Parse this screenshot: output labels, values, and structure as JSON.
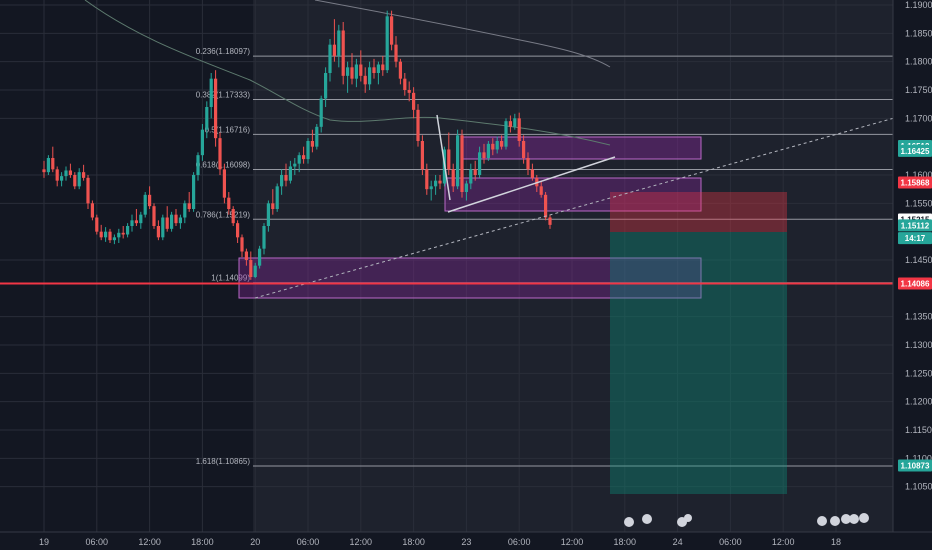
{
  "chart_data": {
    "type": "candlestick",
    "y_axis": {
      "min": 1.1,
      "max": 1.19,
      "ticks": [
        "1.19000",
        "1.18500",
        "1.18000",
        "1.17500",
        "1.17000",
        "1.16000",
        "1.15500",
        "1.14500",
        "1.13500",
        "1.13000",
        "1.12500",
        "1.12000",
        "1.11500",
        "1.11000",
        "1.10500"
      ],
      "tick_values": [
        1.19,
        1.185,
        1.18,
        1.175,
        1.17,
        1.16,
        1.155,
        1.145,
        1.135,
        1.13,
        1.125,
        1.12,
        1.115,
        1.11,
        1.105
      ]
    },
    "x_axis": {
      "ticks": [
        "19",
        "06:00",
        "12:00",
        "18:00",
        "20",
        "06:00",
        "12:00",
        "18:00",
        "23",
        "06:00",
        "12:00",
        "18:00",
        "24",
        "06:00",
        "12:00",
        "18"
      ],
      "tick_index": [
        0,
        12,
        24,
        36,
        48,
        60,
        72,
        84,
        96,
        108,
        120,
        132,
        144,
        156,
        168,
        180
      ]
    },
    "price_tags": [
      {
        "label": "1.16512",
        "price": 1.16512,
        "color": "#26a69a"
      },
      {
        "label": "1.16425",
        "price": 1.16425,
        "color": "#26a69a"
      },
      {
        "label": "1.15868",
        "price": 1.15868,
        "color": "#f23645"
      },
      {
        "label": "1.15215",
        "price": 1.15215,
        "color": "#ffffff"
      },
      {
        "label": "1.15112",
        "price": 1.15112,
        "color": "#26a69a"
      },
      {
        "label": "14:17",
        "price": 1.14885,
        "color": "#26a69a"
      },
      {
        "label": "1.14086",
        "price": 1.14086,
        "color": "#f23645"
      },
      {
        "label": "1.10873",
        "price": 1.10873,
        "color": "#26a69a"
      }
    ],
    "fib_levels": [
      {
        "label": "0.236(1.18097)",
        "price": 1.18097
      },
      {
        "label": "0.382(1.17333)",
        "price": 1.17333
      },
      {
        "label": "0.5(1.16716)",
        "price": 1.16716
      },
      {
        "label": "0.618(1.16098)",
        "price": 1.16098
      },
      {
        "label": "0.786(1.15219)",
        "price": 1.15219
      },
      {
        "label": "1(1.14099)",
        "price": 1.14099
      },
      {
        "label": "1.618(1.10865)",
        "price": 1.10865
      }
    ],
    "support_line": 1.14086,
    "candles": [
      [
        1.161,
        1.1625,
        1.1595,
        1.1605
      ],
      [
        1.1605,
        1.1635,
        1.16,
        1.163
      ],
      [
        1.163,
        1.165,
        1.1605,
        1.161
      ],
      [
        1.161,
        1.1615,
        1.158,
        1.159
      ],
      [
        1.159,
        1.1605,
        1.158,
        1.1598
      ],
      [
        1.1598,
        1.1615,
        1.159,
        1.1608
      ],
      [
        1.1608,
        1.162,
        1.1595,
        1.16
      ],
      [
        1.16,
        1.1605,
        1.1575,
        1.158
      ],
      [
        1.158,
        1.1612,
        1.1575,
        1.1605
      ],
      [
        1.1605,
        1.1618,
        1.159,
        1.1595
      ],
      [
        1.1595,
        1.16,
        1.154,
        1.155
      ],
      [
        1.155,
        1.1555,
        1.152,
        1.1525
      ],
      [
        1.1525,
        1.153,
        1.1495,
        1.15
      ],
      [
        1.15,
        1.1512,
        1.1485,
        1.149
      ],
      [
        1.149,
        1.1508,
        1.1482,
        1.15
      ],
      [
        1.15,
        1.1505,
        1.148,
        1.1485
      ],
      [
        1.1485,
        1.1495,
        1.1478,
        1.149
      ],
      [
        1.149,
        1.1505,
        1.148,
        1.1498
      ],
      [
        1.1498,
        1.151,
        1.1488,
        1.1495
      ],
      [
        1.1495,
        1.1515,
        1.149,
        1.151
      ],
      [
        1.151,
        1.153,
        1.15,
        1.152
      ],
      [
        1.152,
        1.154,
        1.151,
        1.1515
      ],
      [
        1.1515,
        1.1535,
        1.1505,
        1.153
      ],
      [
        1.153,
        1.157,
        1.1525,
        1.1565
      ],
      [
        1.1565,
        1.158,
        1.154,
        1.1545
      ],
      [
        1.1545,
        1.155,
        1.1505,
        1.151
      ],
      [
        1.151,
        1.152,
        1.1485,
        1.149
      ],
      [
        1.149,
        1.153,
        1.1485,
        1.1525
      ],
      [
        1.1525,
        1.1545,
        1.15,
        1.1505
      ],
      [
        1.1505,
        1.1535,
        1.15,
        1.153
      ],
      [
        1.153,
        1.154,
        1.151,
        1.1515
      ],
      [
        1.1515,
        1.153,
        1.1505,
        1.1525
      ],
      [
        1.1525,
        1.1555,
        1.1515,
        1.155
      ],
      [
        1.155,
        1.157,
        1.1535,
        1.154
      ],
      [
        1.154,
        1.1605,
        1.1535,
        1.16
      ],
      [
        1.16,
        1.164,
        1.159,
        1.1635
      ],
      [
        1.1635,
        1.169,
        1.1625,
        1.168
      ],
      [
        1.168,
        1.173,
        1.1665,
        1.172
      ],
      [
        1.172,
        1.178,
        1.17,
        1.177
      ],
      [
        1.177,
        1.1785,
        1.165,
        1.1665
      ],
      [
        1.1665,
        1.1675,
        1.16,
        1.161
      ],
      [
        1.161,
        1.162,
        1.155,
        1.156
      ],
      [
        1.156,
        1.157,
        1.153,
        1.154
      ],
      [
        1.154,
        1.1545,
        1.151,
        1.1515
      ],
      [
        1.1515,
        1.152,
        1.148,
        1.149
      ],
      [
        1.149,
        1.1495,
        1.1455,
        1.1465
      ],
      [
        1.1465,
        1.147,
        1.144,
        1.145
      ],
      [
        1.145,
        1.1465,
        1.1415,
        1.142
      ],
      [
        1.142,
        1.1445,
        1.1418,
        1.144
      ],
      [
        1.144,
        1.1475,
        1.1435,
        1.147
      ],
      [
        1.147,
        1.1515,
        1.146,
        1.151
      ],
      [
        1.151,
        1.1555,
        1.15,
        1.155
      ],
      [
        1.155,
        1.1575,
        1.153,
        1.154
      ],
      [
        1.154,
        1.1585,
        1.1535,
        1.158
      ],
      [
        1.158,
        1.161,
        1.1565,
        1.16
      ],
      [
        1.16,
        1.162,
        1.158,
        1.159
      ],
      [
        1.159,
        1.1625,
        1.1585,
        1.1615
      ],
      [
        1.1615,
        1.163,
        1.16,
        1.162
      ],
      [
        1.162,
        1.164,
        1.1605,
        1.1635
      ],
      [
        1.1635,
        1.165,
        1.162,
        1.1628
      ],
      [
        1.1628,
        1.1665,
        1.162,
        1.166
      ],
      [
        1.166,
        1.168,
        1.164,
        1.165
      ],
      [
        1.165,
        1.169,
        1.1645,
        1.1685
      ],
      [
        1.1685,
        1.174,
        1.1675,
        1.1735
      ],
      [
        1.1735,
        1.179,
        1.172,
        1.178
      ],
      [
        1.178,
        1.184,
        1.1765,
        1.183
      ],
      [
        1.183,
        1.1875,
        1.18,
        1.181
      ],
      [
        1.181,
        1.1865,
        1.179,
        1.1855
      ],
      [
        1.1855,
        1.187,
        1.176,
        1.1775
      ],
      [
        1.1775,
        1.18,
        1.1745,
        1.179
      ],
      [
        1.179,
        1.1815,
        1.176,
        1.177
      ],
      [
        1.177,
        1.1805,
        1.1755,
        1.1795
      ],
      [
        1.1795,
        1.182,
        1.1765,
        1.1775
      ],
      [
        1.1775,
        1.179,
        1.1745,
        1.176
      ],
      [
        1.176,
        1.18,
        1.175,
        1.179
      ],
      [
        1.179,
        1.1805,
        1.177,
        1.178
      ],
      [
        1.178,
        1.18,
        1.176,
        1.1795
      ],
      [
        1.1795,
        1.181,
        1.1775,
        1.1785
      ],
      [
        1.1785,
        1.189,
        1.178,
        1.188
      ],
      [
        1.188,
        1.189,
        1.182,
        1.183
      ],
      [
        1.183,
        1.1845,
        1.179,
        1.18
      ],
      [
        1.18,
        1.1805,
        1.176,
        1.177
      ],
      [
        1.177,
        1.178,
        1.174,
        1.175
      ],
      [
        1.175,
        1.1765,
        1.173,
        1.1745
      ],
      [
        1.1745,
        1.1755,
        1.17,
        1.1715
      ],
      [
        1.1715,
        1.1725,
        1.165,
        1.166
      ],
      [
        1.166,
        1.167,
        1.16,
        1.161
      ],
      [
        1.161,
        1.162,
        1.1565,
        1.1575
      ],
      [
        1.1575,
        1.159,
        1.1555,
        1.158
      ],
      [
        1.158,
        1.16,
        1.1565,
        1.159
      ],
      [
        1.159,
        1.16,
        1.1575,
        1.1585
      ],
      [
        1.1585,
        1.165,
        1.158,
        1.1645
      ],
      [
        1.1645,
        1.1675,
        1.16,
        1.161
      ],
      [
        1.161,
        1.162,
        1.157,
        1.158
      ],
      [
        1.158,
        1.168,
        1.1575,
        1.167
      ],
      [
        1.167,
        1.168,
        1.156,
        1.157
      ],
      [
        1.157,
        1.159,
        1.1555,
        1.1585
      ],
      [
        1.1585,
        1.162,
        1.1575,
        1.161
      ],
      [
        1.161,
        1.1625,
        1.159,
        1.16
      ],
      [
        1.16,
        1.165,
        1.1595,
        1.164
      ],
      [
        1.164,
        1.1655,
        1.162,
        1.163
      ],
      [
        1.163,
        1.166,
        1.1625,
        1.1655
      ],
      [
        1.1655,
        1.1665,
        1.1635,
        1.1645
      ],
      [
        1.1645,
        1.1668,
        1.1638,
        1.166
      ],
      [
        1.166,
        1.167,
        1.1645,
        1.165
      ],
      [
        1.165,
        1.17,
        1.1645,
        1.1695
      ],
      [
        1.1695,
        1.1705,
        1.1675,
        1.1685
      ],
      [
        1.1685,
        1.1708,
        1.168,
        1.17
      ],
      [
        1.17,
        1.171,
        1.165,
        1.166
      ],
      [
        1.166,
        1.167,
        1.162,
        1.163
      ],
      [
        1.163,
        1.164,
        1.16,
        1.161
      ],
      [
        1.161,
        1.162,
        1.159,
        1.1595
      ],
      [
        1.1595,
        1.16,
        1.157,
        1.158
      ],
      [
        1.158,
        1.159,
        1.156,
        1.1565
      ],
      [
        1.1565,
        1.157,
        1.152,
        1.1525
      ],
      [
        1.1525,
        1.153,
        1.1505,
        1.1512
      ]
    ]
  }
}
